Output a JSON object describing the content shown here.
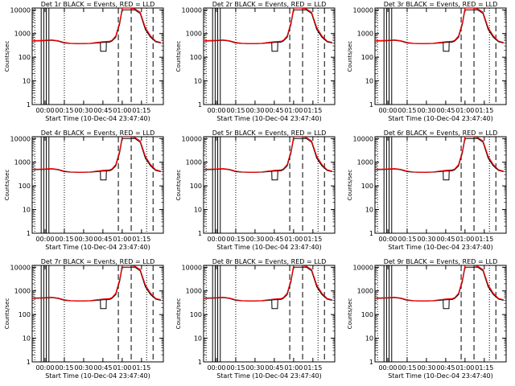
{
  "figure": {
    "xlabel": "Start Time (10-Dec-04 23:47:40)",
    "ylabel": "Counts/sec",
    "x_tick_labels": [
      "00:00",
      "00:15",
      "00:30",
      "00:45",
      "01:00",
      "01:15"
    ],
    "y_tick_labels": [
      "1",
      "10",
      "100",
      "1000",
      "10000"
    ]
  },
  "colors": {
    "events": "#000000",
    "lld": "#ff0000",
    "background": "#ffffff"
  },
  "chart_data": [
    {
      "type": "line",
      "title": "Det 1r BLACK = Events, RED = LLD",
      "xlabel": "Start Time (10-Dec-04 23:47:40)",
      "ylabel": "Counts/sec",
      "y_scale": "log",
      "ylim": [
        1,
        12000
      ],
      "x_unit": "minutes after 00:00"
    },
    {
      "type": "line",
      "title": "Det 2r BLACK = Events, RED = LLD",
      "xlabel": "Start Time (10-Dec-04 23:47:40)",
      "ylabel": "Counts/sec",
      "y_scale": "log",
      "ylim": [
        1,
        12000
      ],
      "x_unit": "minutes after 00:00"
    },
    {
      "type": "line",
      "title": "Det 3r BLACK = Events, RED = LLD",
      "xlabel": "Start Time (10-Dec-04 23:47:40)",
      "ylabel": "Counts/sec",
      "y_scale": "log",
      "ylim": [
        1,
        12000
      ],
      "x_unit": "minutes after 00:00"
    },
    {
      "type": "line",
      "title": "Det 4r BLACK = Events, RED = LLD",
      "xlabel": "Start Time (10-Dec-04 23:47:40)",
      "ylabel": "Counts/sec",
      "y_scale": "log",
      "ylim": [
        1,
        12000
      ],
      "x_unit": "minutes after 00:00"
    },
    {
      "type": "line",
      "title": "Det 5r BLACK = Events, RED = LLD",
      "xlabel": "Start Time (10-Dec-04 23:47:40)",
      "ylabel": "Counts/sec",
      "y_scale": "log",
      "ylim": [
        1,
        12000
      ],
      "x_unit": "minutes after 00:00"
    },
    {
      "type": "line",
      "title": "Det 6r BLACK = Events, RED = LLD",
      "xlabel": "Start Time (10-Dec-04 23:47:40)",
      "ylabel": "Counts/sec",
      "y_scale": "log",
      "ylim": [
        1,
        12000
      ],
      "x_unit": "minutes after 00:00"
    },
    {
      "type": "line",
      "title": "Det 7r BLACK = Events, RED = LLD",
      "xlabel": "Start Time (10-Dec-04 23:47:40)",
      "ylabel": "Counts/sec",
      "y_scale": "log",
      "ylim": [
        1,
        12000
      ],
      "x_unit": "minutes after 00:00"
    },
    {
      "type": "line",
      "title": "Det 8r BLACK = Events, RED = LLD",
      "xlabel": "Start Time (10-Dec-04 23:47:40)",
      "ylabel": "Counts/sec",
      "y_scale": "log",
      "ylim": [
        1,
        12000
      ],
      "x_unit": "minutes after 00:00"
    },
    {
      "type": "line",
      "title": "Det 9r BLACK = Events, RED = LLD",
      "xlabel": "Start Time (10-Dec-04 23:47:40)",
      "ylabel": "Counts/sec",
      "y_scale": "log",
      "ylim": [
        1,
        12000
      ],
      "x_unit": "minutes after 00:00"
    }
  ],
  "shared_series": {
    "xlim": [
      -10,
      92
    ],
    "x_tick_values": [
      0,
      15,
      30,
      45,
      60,
      75
    ],
    "y_tick_values": [
      1,
      10,
      100,
      1000,
      10000
    ],
    "events": {
      "name": "Events",
      "x": [
        -10,
        0,
        5,
        10,
        15,
        20,
        25,
        30,
        35,
        40,
        45,
        50,
        52,
        55,
        58,
        60,
        63,
        66,
        70,
        74,
        78,
        82,
        86,
        90
      ],
      "y": [
        480,
        500,
        520,
        480,
        400,
        380,
        370,
        370,
        380,
        400,
        420,
        430,
        480,
        700,
        2500,
        10000,
        10000,
        10000,
        10000,
        7000,
        1500,
        700,
        450,
        400
      ]
    },
    "events_dropout": {
      "name": "Events",
      "x": [
        43,
        43.2,
        47.5,
        47.7
      ],
      "y": [
        420,
        180,
        180,
        420
      ]
    },
    "lld": {
      "name": "LLD",
      "x": [
        -10,
        0,
        5,
        10,
        15,
        20,
        25,
        30,
        35,
        40,
        45,
        50,
        52,
        55,
        58,
        60,
        63,
        66,
        70,
        74,
        78,
        82,
        86,
        90
      ],
      "y": [
        500,
        520,
        540,
        500,
        420,
        390,
        380,
        380,
        390,
        420,
        450,
        470,
        520,
        800,
        3000,
        12000,
        12000,
        12000,
        11000,
        8000,
        1800,
        800,
        480,
        420
      ]
    },
    "solid_markers_x": [
      -3,
      -1,
      1,
      3
    ],
    "dotted_markers_x": [
      -8,
      15,
      79
    ],
    "dashed_markers_x": [
      57,
      67,
      84
    ]
  }
}
